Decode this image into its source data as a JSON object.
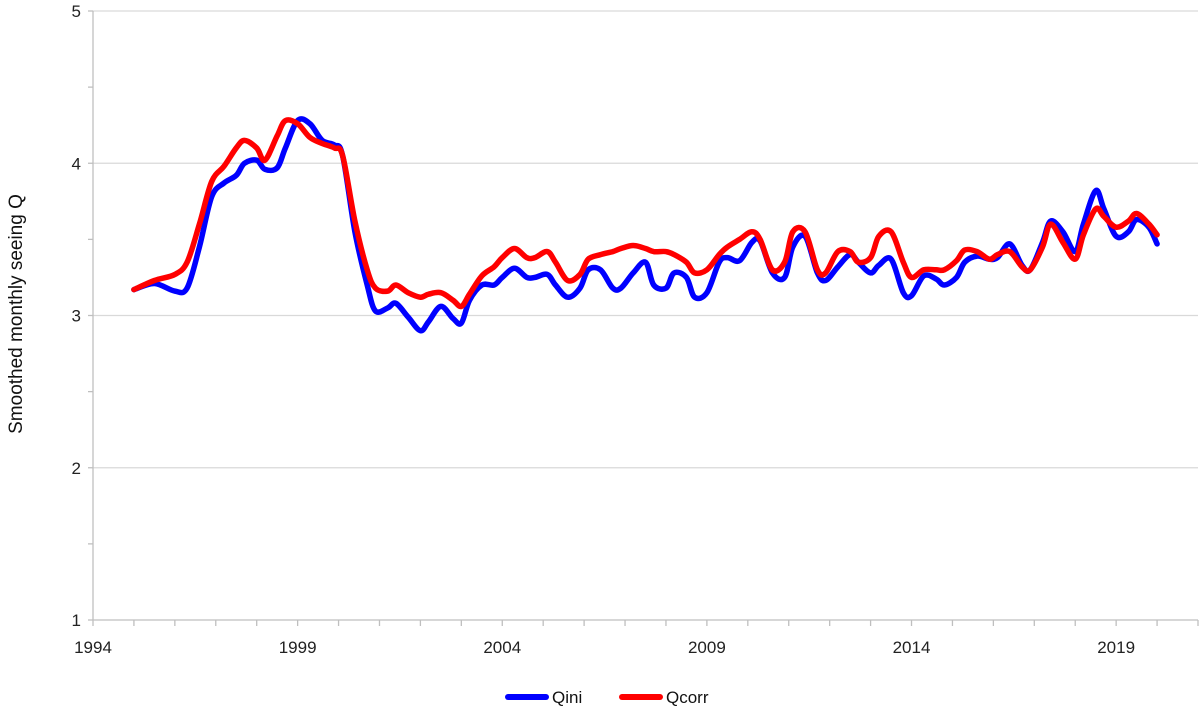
{
  "chart_data": {
    "type": "line",
    "title": "",
    "xlabel": "",
    "ylabel": "Smoothed monthly seeing Q",
    "xlim": [
      1994,
      2021
    ],
    "ylim": [
      1,
      5
    ],
    "x_ticks": [
      1994,
      1999,
      2004,
      2009,
      2014,
      2019
    ],
    "y_ticks": [
      1,
      2,
      3,
      4,
      5
    ],
    "grid": "horizontal",
    "legend": "bottom-center",
    "series": [
      {
        "name": "Qini",
        "color": "#0000ff",
        "x": [
          1995.0,
          1995.5,
          1996.0,
          1996.3,
          1996.6,
          1996.9,
          1997.2,
          1997.5,
          1997.7,
          1998.0,
          1998.2,
          1998.5,
          1998.7,
          1999.0,
          1999.3,
          1999.6,
          1999.9,
          2000.1,
          2000.4,
          2000.7,
          2000.9,
          2001.2,
          2001.4,
          2001.7,
          2002.0,
          2002.2,
          2002.5,
          2002.8,
          2003.0,
          2003.2,
          2003.5,
          2003.8,
          2004.0,
          2004.3,
          2004.6,
          2004.8,
          2005.1,
          2005.3,
          2005.6,
          2005.9,
          2006.1,
          2006.4,
          2006.7,
          2006.9,
          2007.2,
          2007.5,
          2007.7,
          2008.0,
          2008.2,
          2008.5,
          2008.7,
          2009.0,
          2009.3,
          2009.5,
          2009.8,
          2010.1,
          2010.3,
          2010.6,
          2010.9,
          2011.1,
          2011.4,
          2011.7,
          2011.9,
          2012.2,
          2012.5,
          2012.7,
          2013.0,
          2013.2,
          2013.5,
          2013.8,
          2014.0,
          2014.3,
          2014.6,
          2014.8,
          2015.1,
          2015.3,
          2015.6,
          2015.9,
          2016.1,
          2016.4,
          2016.7,
          2016.9,
          2017.2,
          2017.4,
          2017.7,
          2018.0,
          2018.2,
          2018.5,
          2018.7,
          2019.0,
          2019.3,
          2019.5,
          2019.8,
          2020.0
        ],
        "y": [
          3.17,
          3.21,
          3.16,
          3.18,
          3.45,
          3.78,
          3.87,
          3.92,
          4.0,
          4.02,
          3.96,
          3.97,
          4.1,
          4.28,
          4.26,
          4.15,
          4.12,
          4.05,
          3.55,
          3.2,
          3.03,
          3.05,
          3.08,
          2.99,
          2.9,
          2.96,
          3.06,
          2.98,
          2.95,
          3.1,
          3.2,
          3.2,
          3.25,
          3.31,
          3.25,
          3.25,
          3.27,
          3.2,
          3.12,
          3.18,
          3.3,
          3.3,
          3.18,
          3.18,
          3.28,
          3.35,
          3.2,
          3.18,
          3.28,
          3.25,
          3.12,
          3.15,
          3.35,
          3.38,
          3.36,
          3.48,
          3.49,
          3.28,
          3.25,
          3.45,
          3.52,
          3.28,
          3.23,
          3.32,
          3.4,
          3.35,
          3.28,
          3.33,
          3.37,
          3.15,
          3.13,
          3.26,
          3.24,
          3.2,
          3.25,
          3.35,
          3.39,
          3.37,
          3.38,
          3.47,
          3.33,
          3.3,
          3.48,
          3.62,
          3.55,
          3.42,
          3.6,
          3.82,
          3.7,
          3.52,
          3.55,
          3.63,
          3.58,
          3.47
        ]
      },
      {
        "name": "Qcorr",
        "color": "#ff0000",
        "x": [
          1995.0,
          1995.5,
          1996.0,
          1996.3,
          1996.6,
          1996.9,
          1997.2,
          1997.5,
          1997.7,
          1998.0,
          1998.2,
          1998.5,
          1998.7,
          1999.0,
          1999.3,
          1999.6,
          1999.9,
          2000.1,
          2000.4,
          2000.7,
          2000.9,
          2001.2,
          2001.4,
          2001.7,
          2002.0,
          2002.2,
          2002.5,
          2002.8,
          2003.0,
          2003.2,
          2003.5,
          2003.8,
          2004.0,
          2004.3,
          2004.6,
          2004.8,
          2005.1,
          2005.3,
          2005.6,
          2005.9,
          2006.1,
          2006.4,
          2006.7,
          2006.9,
          2007.2,
          2007.5,
          2007.7,
          2008.0,
          2008.2,
          2008.5,
          2008.7,
          2009.0,
          2009.3,
          2009.5,
          2009.8,
          2010.1,
          2010.3,
          2010.6,
          2010.9,
          2011.1,
          2011.4,
          2011.7,
          2011.9,
          2012.2,
          2012.5,
          2012.7,
          2013.0,
          2013.2,
          2013.5,
          2013.8,
          2014.0,
          2014.3,
          2014.6,
          2014.8,
          2015.1,
          2015.3,
          2015.6,
          2015.9,
          2016.1,
          2016.4,
          2016.7,
          2016.9,
          2017.2,
          2017.4,
          2017.7,
          2018.0,
          2018.2,
          2018.5,
          2018.7,
          2019.0,
          2019.3,
          2019.5,
          2019.8,
          2020.0
        ],
        "y": [
          3.17,
          3.23,
          3.27,
          3.35,
          3.6,
          3.88,
          3.98,
          4.1,
          4.15,
          4.1,
          4.02,
          4.18,
          4.28,
          4.26,
          4.17,
          4.13,
          4.1,
          4.05,
          3.62,
          3.3,
          3.18,
          3.16,
          3.2,
          3.15,
          3.12,
          3.14,
          3.15,
          3.1,
          3.06,
          3.14,
          3.26,
          3.32,
          3.38,
          3.44,
          3.38,
          3.38,
          3.42,
          3.35,
          3.23,
          3.27,
          3.37,
          3.4,
          3.42,
          3.44,
          3.46,
          3.44,
          3.42,
          3.42,
          3.4,
          3.35,
          3.28,
          3.3,
          3.4,
          3.45,
          3.5,
          3.55,
          3.5,
          3.3,
          3.35,
          3.55,
          3.55,
          3.3,
          3.28,
          3.42,
          3.42,
          3.35,
          3.38,
          3.52,
          3.55,
          3.35,
          3.25,
          3.3,
          3.3,
          3.3,
          3.36,
          3.43,
          3.42,
          3.37,
          3.4,
          3.42,
          3.32,
          3.3,
          3.45,
          3.6,
          3.48,
          3.37,
          3.53,
          3.7,
          3.65,
          3.58,
          3.62,
          3.67,
          3.6,
          3.53
        ]
      }
    ]
  }
}
